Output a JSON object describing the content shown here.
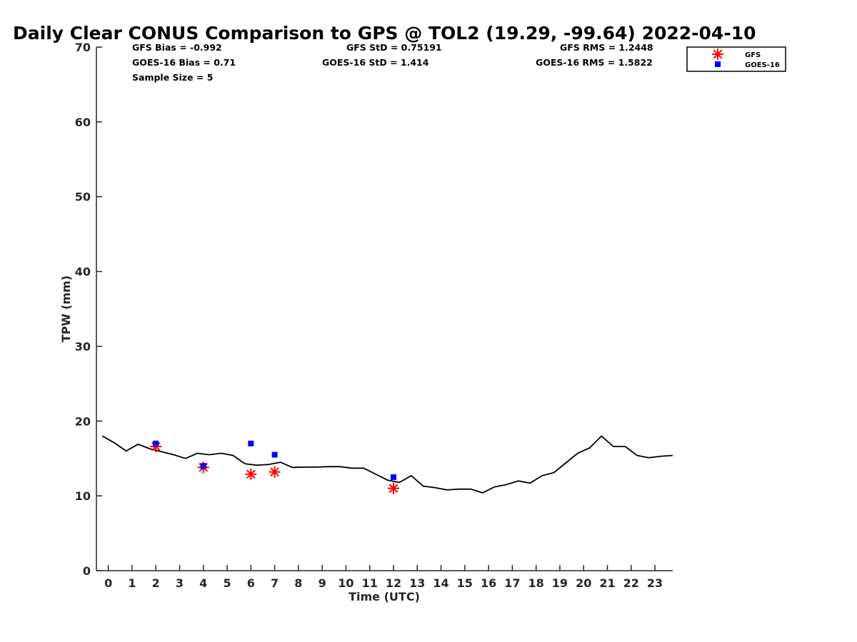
{
  "chart_data": {
    "type": "line",
    "title": "Daily Clear CONUS Comparison to GPS @ TOL2 (19.29, -99.64) 2022-04-10",
    "xlabel": "Time (UTC)",
    "ylabel": "TPW (mm)",
    "xlim": [
      -0.5,
      23.75
    ],
    "ylim": [
      0,
      70
    ],
    "xticks": [
      0,
      1,
      2,
      3,
      4,
      5,
      6,
      7,
      8,
      9,
      10,
      11,
      12,
      13,
      14,
      15,
      16,
      17,
      18,
      19,
      20,
      21,
      22,
      23
    ],
    "yticks": [
      0,
      10,
      20,
      30,
      40,
      50,
      60,
      70
    ],
    "grid": false,
    "legend_position": "top-right outside",
    "stats": {
      "gfs_bias": "GFS Bias = -0.992",
      "gfs_std": "GFS StD = 0.75191",
      "gfs_rms": "GFS RMS = 1.2448",
      "goes_bias": "GOES-16 Bias = 0.71",
      "goes_std": "GOES-16 StD = 1.414",
      "goes_rms": "GOES-16 RMS = 1.5822",
      "sample_size": "Sample Size = 5"
    },
    "series": [
      {
        "role": "gps-line",
        "style": "line",
        "color": "#000000",
        "x": [
          -0.25,
          0.25,
          0.75,
          1.25,
          1.75,
          2.25,
          2.75,
          3.25,
          3.75,
          4.25,
          4.75,
          5.25,
          5.75,
          6.25,
          6.75,
          7.25,
          7.75,
          8.25,
          8.75,
          9.25,
          9.75,
          10.25,
          10.75,
          11.25,
          11.75,
          12.25,
          12.75,
          13.25,
          13.75,
          14.25,
          14.75,
          15.25,
          15.75,
          16.25,
          16.75,
          17.25,
          17.75,
          18.25,
          18.75,
          19.25,
          19.75,
          20.25,
          20.75,
          21.25,
          21.75,
          22.25,
          22.75,
          23.25,
          23.75
        ],
        "y": [
          18.0,
          17.1,
          16.0,
          16.9,
          16.3,
          15.9,
          15.5,
          15.0,
          15.7,
          15.5,
          15.7,
          15.4,
          14.3,
          14.1,
          14.2,
          14.5,
          13.8,
          13.85,
          13.85,
          13.9,
          13.9,
          13.7,
          13.7,
          12.9,
          12.1,
          11.8,
          12.7,
          11.3,
          11.1,
          10.8,
          10.9,
          10.9,
          10.4,
          11.2,
          11.5,
          12.0,
          11.7,
          12.7,
          13.1,
          14.4,
          15.7,
          16.4,
          18.0,
          16.6,
          16.6,
          15.4,
          15.1,
          15.3,
          15.4
        ]
      },
      {
        "name": "GFS",
        "style": "marker-star",
        "color": "#ff0000",
        "x": [
          2,
          4,
          6,
          7,
          12
        ],
        "y": [
          16.6,
          13.8,
          12.9,
          13.2,
          11.0
        ]
      },
      {
        "name": "GOES-16",
        "style": "marker-square",
        "color": "#0000ff",
        "x": [
          2,
          4,
          6,
          7,
          12
        ],
        "y": [
          17.0,
          14.0,
          17.0,
          15.5,
          12.5
        ]
      }
    ]
  }
}
